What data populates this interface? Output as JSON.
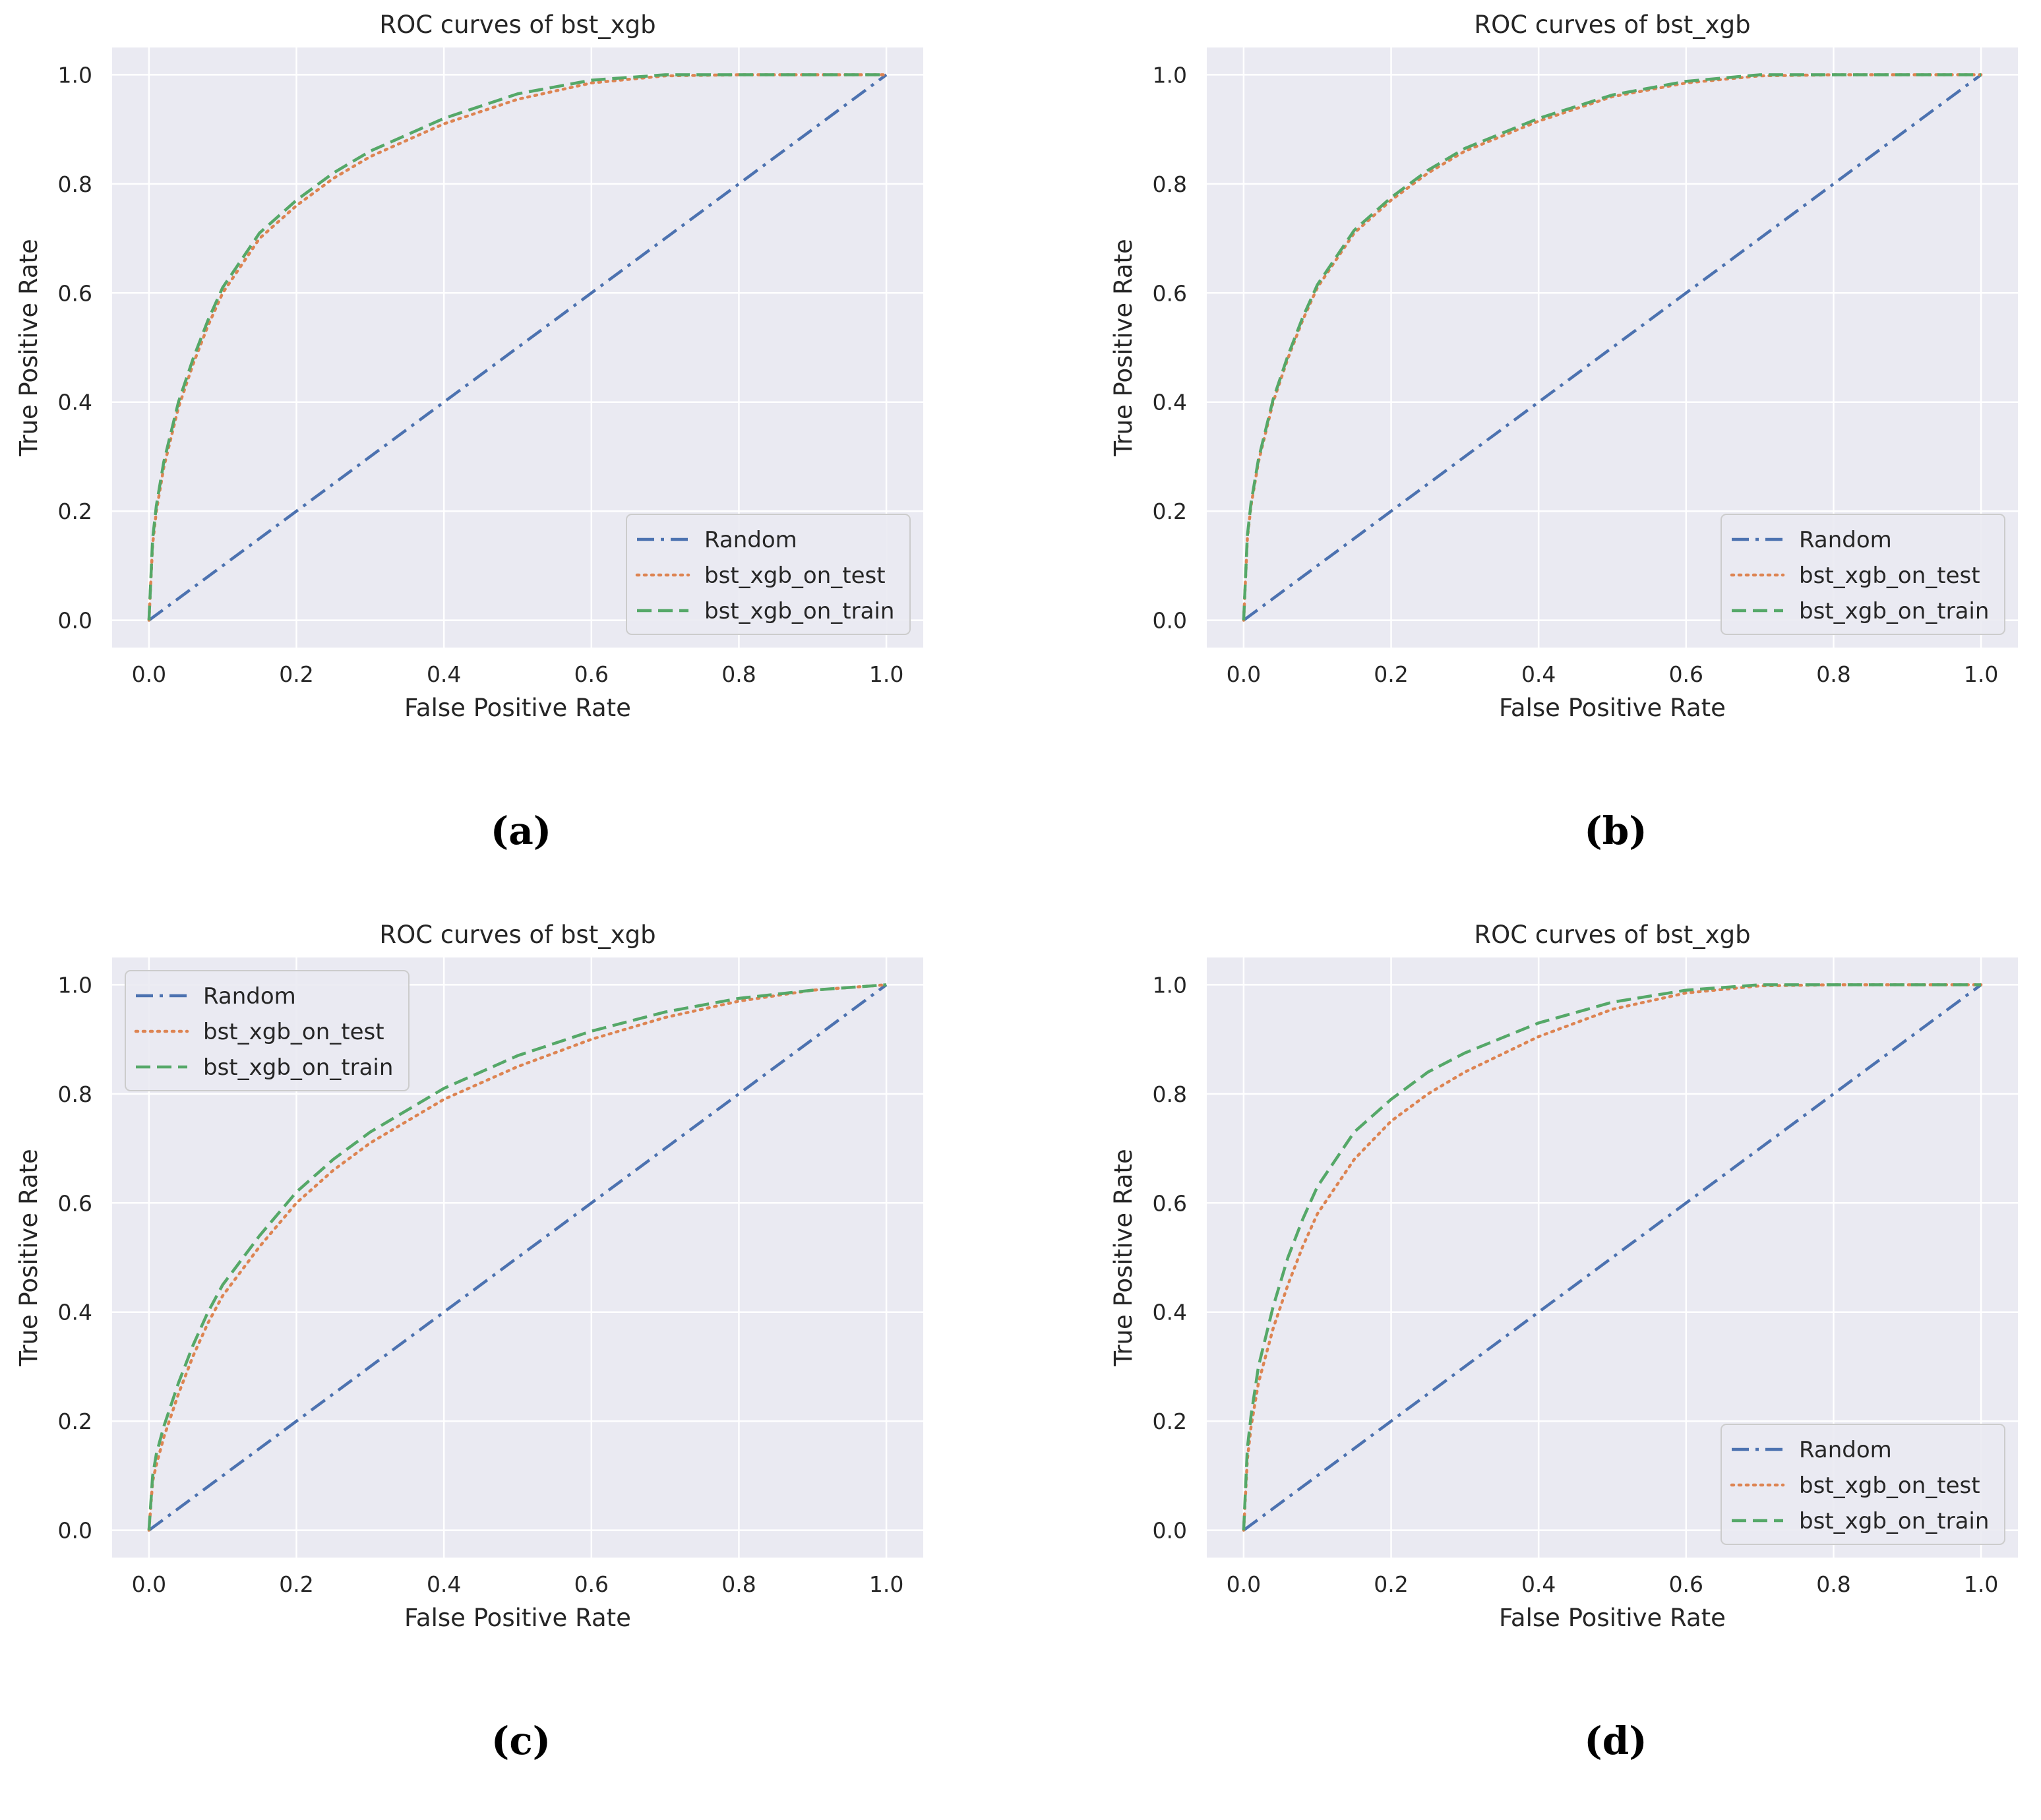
{
  "chart_data": [
    {
      "type": "line",
      "caption": "(a)",
      "title": "ROC curves of bst_xgb",
      "xlabel": "False Positive Rate",
      "ylabel": "True Positive Rate",
      "xlim": [
        -0.05,
        1.05
      ],
      "ylim": [
        -0.05,
        1.05
      ],
      "xticks": [
        0.0,
        0.2,
        0.4,
        0.6,
        0.8,
        1.0
      ],
      "yticks": [
        0.0,
        0.2,
        0.4,
        0.6,
        0.8,
        1.0
      ],
      "tick_labels": [
        "0.0",
        "0.2",
        "0.4",
        "0.6",
        "0.8",
        "1.0"
      ],
      "grid": true,
      "legend_position": "lower-right",
      "series": [
        {
          "name": "Random",
          "color": "#4c72b0",
          "style": "dashdot",
          "x": [
            0.0,
            1.0
          ],
          "y": [
            0.0,
            1.0
          ]
        },
        {
          "name": "bst_xgb_on_test",
          "color": "#dd8452",
          "style": "dotted",
          "x": [
            0.0,
            0.005,
            0.01,
            0.02,
            0.04,
            0.06,
            0.08,
            0.1,
            0.15,
            0.2,
            0.25,
            0.3,
            0.4,
            0.5,
            0.6,
            0.7,
            0.8,
            0.9,
            1.0
          ],
          "y": [
            0.0,
            0.14,
            0.2,
            0.28,
            0.39,
            0.47,
            0.54,
            0.6,
            0.7,
            0.76,
            0.81,
            0.85,
            0.91,
            0.955,
            0.985,
            0.998,
            1.0,
            1.0,
            1.0
          ]
        },
        {
          "name": "bst_xgb_on_train",
          "color": "#55a868",
          "style": "dashed",
          "x": [
            0.0,
            0.005,
            0.01,
            0.02,
            0.04,
            0.06,
            0.08,
            0.1,
            0.15,
            0.2,
            0.25,
            0.3,
            0.4,
            0.5,
            0.6,
            0.7,
            0.8,
            0.9,
            1.0
          ],
          "y": [
            0.0,
            0.15,
            0.21,
            0.29,
            0.4,
            0.48,
            0.55,
            0.61,
            0.71,
            0.77,
            0.82,
            0.86,
            0.92,
            0.965,
            0.99,
            1.0,
            1.0,
            1.0,
            1.0
          ]
        }
      ]
    },
    {
      "type": "line",
      "caption": "(b)",
      "title": "ROC curves of bst_xgb",
      "xlabel": "False Positive Rate",
      "ylabel": "True Positive Rate",
      "xlim": [
        -0.05,
        1.05
      ],
      "ylim": [
        -0.05,
        1.05
      ],
      "xticks": [
        0.0,
        0.2,
        0.4,
        0.6,
        0.8,
        1.0
      ],
      "yticks": [
        0.0,
        0.2,
        0.4,
        0.6,
        0.8,
        1.0
      ],
      "tick_labels": [
        "0.0",
        "0.2",
        "0.4",
        "0.6",
        "0.8",
        "1.0"
      ],
      "grid": true,
      "legend_position": "lower-right",
      "series": [
        {
          "name": "Random",
          "color": "#4c72b0",
          "style": "dashdot",
          "x": [
            0.0,
            1.0
          ],
          "y": [
            0.0,
            1.0
          ]
        },
        {
          "name": "bst_xgb_on_test",
          "color": "#dd8452",
          "style": "dotted",
          "x": [
            0.0,
            0.005,
            0.01,
            0.02,
            0.04,
            0.06,
            0.08,
            0.1,
            0.15,
            0.2,
            0.25,
            0.3,
            0.4,
            0.5,
            0.6,
            0.7,
            0.8,
            0.9,
            1.0
          ],
          "y": [
            0.0,
            0.15,
            0.21,
            0.29,
            0.4,
            0.48,
            0.55,
            0.61,
            0.71,
            0.77,
            0.82,
            0.86,
            0.915,
            0.96,
            0.985,
            0.998,
            1.0,
            1.0,
            1.0
          ]
        },
        {
          "name": "bst_xgb_on_train",
          "color": "#55a868",
          "style": "dashed",
          "x": [
            0.0,
            0.005,
            0.01,
            0.02,
            0.04,
            0.06,
            0.08,
            0.1,
            0.15,
            0.2,
            0.25,
            0.3,
            0.4,
            0.5,
            0.6,
            0.7,
            0.8,
            0.9,
            1.0
          ],
          "y": [
            0.0,
            0.155,
            0.215,
            0.295,
            0.405,
            0.485,
            0.555,
            0.615,
            0.715,
            0.775,
            0.825,
            0.865,
            0.92,
            0.963,
            0.988,
            1.0,
            1.0,
            1.0,
            1.0
          ]
        }
      ]
    },
    {
      "type": "line",
      "caption": "(c)",
      "title": "ROC curves of bst_xgb",
      "xlabel": "False Positive Rate",
      "ylabel": "True Positive Rate",
      "xlim": [
        -0.05,
        1.05
      ],
      "ylim": [
        -0.05,
        1.05
      ],
      "xticks": [
        0.0,
        0.2,
        0.4,
        0.6,
        0.8,
        1.0
      ],
      "yticks": [
        0.0,
        0.2,
        0.4,
        0.6,
        0.8,
        1.0
      ],
      "tick_labels": [
        "0.0",
        "0.2",
        "0.4",
        "0.6",
        "0.8",
        "1.0"
      ],
      "grid": true,
      "legend_position": "upper-left",
      "series": [
        {
          "name": "Random",
          "color": "#4c72b0",
          "style": "dashdot",
          "x": [
            0.0,
            1.0
          ],
          "y": [
            0.0,
            1.0
          ]
        },
        {
          "name": "bst_xgb_on_test",
          "color": "#dd8452",
          "style": "dotted",
          "x": [
            0.0,
            0.005,
            0.01,
            0.02,
            0.04,
            0.06,
            0.08,
            0.1,
            0.15,
            0.2,
            0.25,
            0.3,
            0.4,
            0.5,
            0.6,
            0.7,
            0.8,
            0.9,
            1.0
          ],
          "y": [
            0.0,
            0.09,
            0.12,
            0.17,
            0.25,
            0.32,
            0.38,
            0.43,
            0.52,
            0.6,
            0.66,
            0.71,
            0.79,
            0.85,
            0.9,
            0.94,
            0.97,
            0.99,
            1.0
          ]
        },
        {
          "name": "bst_xgb_on_train",
          "color": "#55a868",
          "style": "dashed",
          "x": [
            0.0,
            0.005,
            0.01,
            0.02,
            0.04,
            0.06,
            0.08,
            0.1,
            0.15,
            0.2,
            0.25,
            0.3,
            0.4,
            0.5,
            0.6,
            0.7,
            0.8,
            0.9,
            1.0
          ],
          "y": [
            0.0,
            0.1,
            0.14,
            0.19,
            0.27,
            0.34,
            0.4,
            0.45,
            0.54,
            0.62,
            0.68,
            0.73,
            0.81,
            0.87,
            0.915,
            0.95,
            0.975,
            0.99,
            1.0
          ]
        }
      ]
    },
    {
      "type": "line",
      "caption": "(d)",
      "title": "ROC curves of bst_xgb",
      "xlabel": "False Positive Rate",
      "ylabel": "True Positive Rate",
      "xlim": [
        -0.05,
        1.05
      ],
      "ylim": [
        -0.05,
        1.05
      ],
      "xticks": [
        0.0,
        0.2,
        0.4,
        0.6,
        0.8,
        1.0
      ],
      "yticks": [
        0.0,
        0.2,
        0.4,
        0.6,
        0.8,
        1.0
      ],
      "tick_labels": [
        "0.0",
        "0.2",
        "0.4",
        "0.6",
        "0.8",
        "1.0"
      ],
      "grid": true,
      "legend_position": "lower-right",
      "series": [
        {
          "name": "Random",
          "color": "#4c72b0",
          "style": "dashdot",
          "x": [
            0.0,
            1.0
          ],
          "y": [
            0.0,
            1.0
          ]
        },
        {
          "name": "bst_xgb_on_test",
          "color": "#dd8452",
          "style": "dotted",
          "x": [
            0.0,
            0.005,
            0.01,
            0.02,
            0.04,
            0.06,
            0.08,
            0.1,
            0.15,
            0.2,
            0.25,
            0.3,
            0.4,
            0.5,
            0.6,
            0.7,
            0.8,
            0.9,
            1.0
          ],
          "y": [
            0.0,
            0.13,
            0.19,
            0.27,
            0.37,
            0.45,
            0.52,
            0.58,
            0.68,
            0.75,
            0.8,
            0.84,
            0.905,
            0.955,
            0.985,
            0.998,
            1.0,
            1.0,
            1.0
          ]
        },
        {
          "name": "bst_xgb_on_train",
          "color": "#55a868",
          "style": "dashed",
          "x": [
            0.0,
            0.005,
            0.01,
            0.02,
            0.04,
            0.06,
            0.08,
            0.1,
            0.15,
            0.2,
            0.25,
            0.3,
            0.4,
            0.5,
            0.6,
            0.7,
            0.8,
            0.9,
            1.0
          ],
          "y": [
            0.0,
            0.15,
            0.21,
            0.3,
            0.41,
            0.5,
            0.57,
            0.63,
            0.73,
            0.79,
            0.84,
            0.875,
            0.93,
            0.968,
            0.99,
            1.0,
            1.0,
            1.0,
            1.0
          ]
        }
      ]
    }
  ]
}
